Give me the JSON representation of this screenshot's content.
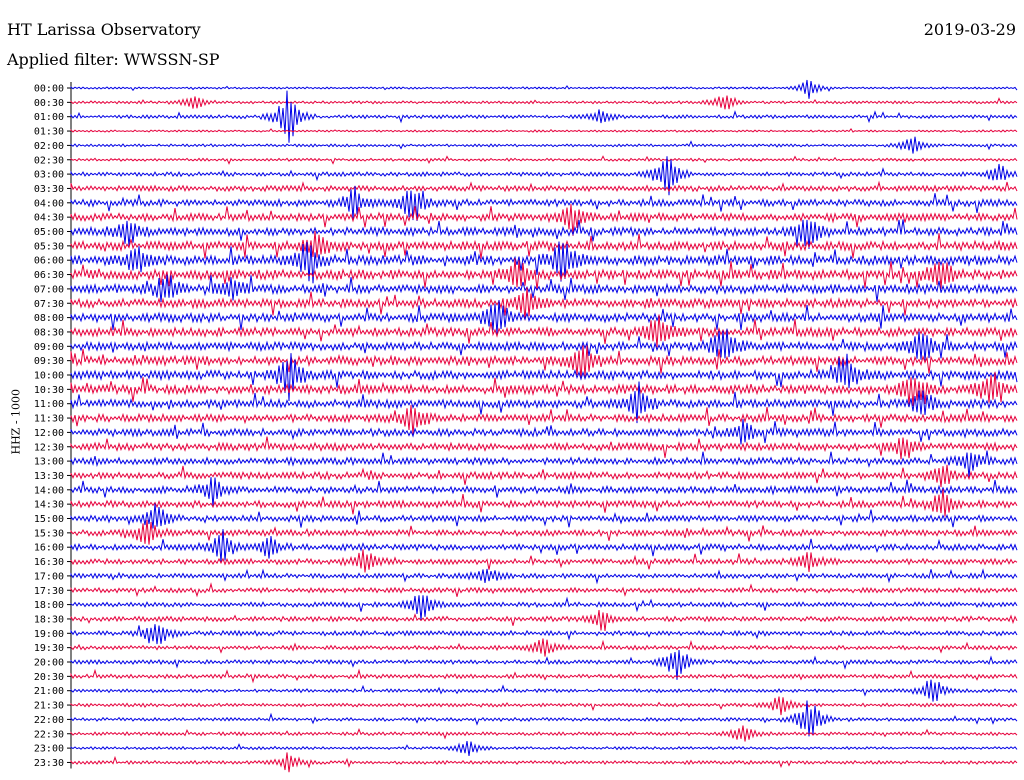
{
  "header": {
    "station": "HT Larissa Observatory",
    "date": "2019-03-29",
    "filter": "Applied filter: WWSSN-SP"
  },
  "chart_data": {
    "type": "line",
    "ylabel": "HHZ - 1000",
    "row_labels": [
      "00:00",
      "00:30",
      "01:00",
      "01:30",
      "02:00",
      "02:30",
      "03:00",
      "03:30",
      "04:00",
      "04:30",
      "05:00",
      "05:30",
      "06:00",
      "06:30",
      "07:00",
      "07:30",
      "08:00",
      "08:30",
      "09:00",
      "09:30",
      "10:00",
      "10:30",
      "11:00",
      "11:30",
      "12:00",
      "12:30",
      "13:00",
      "13:30",
      "14:00",
      "14:30",
      "15:00",
      "15:30",
      "16:00",
      "16:30",
      "17:00",
      "17:30",
      "18:00",
      "18:30",
      "19:00",
      "19:30",
      "20:00",
      "20:30",
      "21:00",
      "21:30",
      "22:00",
      "22:30",
      "23:00",
      "23:30"
    ],
    "colors": [
      "#0000e6",
      "#e6003c"
    ],
    "activity": [
      0.3,
      0.4,
      0.5,
      0.3,
      0.4,
      0.4,
      0.6,
      0.8,
      1.0,
      1.1,
      1.2,
      1.3,
      1.4,
      1.4,
      1.3,
      1.3,
      1.3,
      1.3,
      1.2,
      1.3,
      1.3,
      1.3,
      1.2,
      1.1,
      1.1,
      1.1,
      1.0,
      1.0,
      1.0,
      1.0,
      0.9,
      0.9,
      0.9,
      0.8,
      0.7,
      0.7,
      0.7,
      0.7,
      0.7,
      0.6,
      0.6,
      0.6,
      0.5,
      0.5,
      0.5,
      0.5,
      0.4,
      0.5
    ],
    "events": [
      [
        0,
        0.78,
        2
      ],
      [
        1,
        0.13,
        1.5
      ],
      [
        1,
        0.69,
        2
      ],
      [
        2,
        0.23,
        6
      ],
      [
        2,
        0.56,
        1.5
      ],
      [
        4,
        0.89,
        2
      ],
      [
        6,
        0.63,
        5
      ],
      [
        6,
        0.98,
        2
      ],
      [
        8,
        0.3,
        3
      ],
      [
        8,
        0.36,
        4
      ],
      [
        9,
        0.53,
        3
      ],
      [
        10,
        0.06,
        3
      ],
      [
        10,
        0.78,
        4
      ],
      [
        11,
        0.26,
        3
      ],
      [
        12,
        0.07,
        3
      ],
      [
        12,
        0.25,
        4
      ],
      [
        12,
        0.52,
        5
      ],
      [
        13,
        0.47,
        4
      ],
      [
        13,
        0.92,
        4
      ],
      [
        14,
        0.1,
        3
      ],
      [
        14,
        0.17,
        2
      ],
      [
        15,
        0.48,
        3
      ],
      [
        16,
        0.45,
        4
      ],
      [
        17,
        0.62,
        4
      ],
      [
        18,
        0.69,
        5
      ],
      [
        18,
        0.9,
        4
      ],
      [
        19,
        0.54,
        4
      ],
      [
        20,
        0.23,
        5
      ],
      [
        20,
        0.82,
        4
      ],
      [
        21,
        0.89,
        4
      ],
      [
        21,
        0.97,
        3
      ],
      [
        22,
        0.6,
        4
      ],
      [
        22,
        0.9,
        3
      ],
      [
        23,
        0.36,
        3
      ],
      [
        24,
        0.71,
        2
      ],
      [
        25,
        0.88,
        2
      ],
      [
        26,
        0.95,
        3
      ],
      [
        27,
        0.92,
        3
      ],
      [
        28,
        0.15,
        3
      ],
      [
        29,
        0.92,
        3
      ],
      [
        30,
        0.09,
        3
      ],
      [
        31,
        0.08,
        3
      ],
      [
        32,
        0.16,
        3
      ],
      [
        32,
        0.21,
        2
      ],
      [
        33,
        0.31,
        3
      ],
      [
        33,
        0.78,
        2
      ],
      [
        34,
        0.44,
        2
      ],
      [
        36,
        0.37,
        3
      ],
      [
        37,
        0.56,
        2
      ],
      [
        38,
        0.09,
        3
      ],
      [
        39,
        0.5,
        2
      ],
      [
        40,
        0.64,
        4
      ],
      [
        42,
        0.91,
        3
      ],
      [
        43,
        0.75,
        2
      ],
      [
        44,
        0.78,
        5
      ],
      [
        45,
        0.71,
        2
      ],
      [
        46,
        0.42,
        2
      ],
      [
        47,
        0.23,
        2
      ]
    ]
  }
}
